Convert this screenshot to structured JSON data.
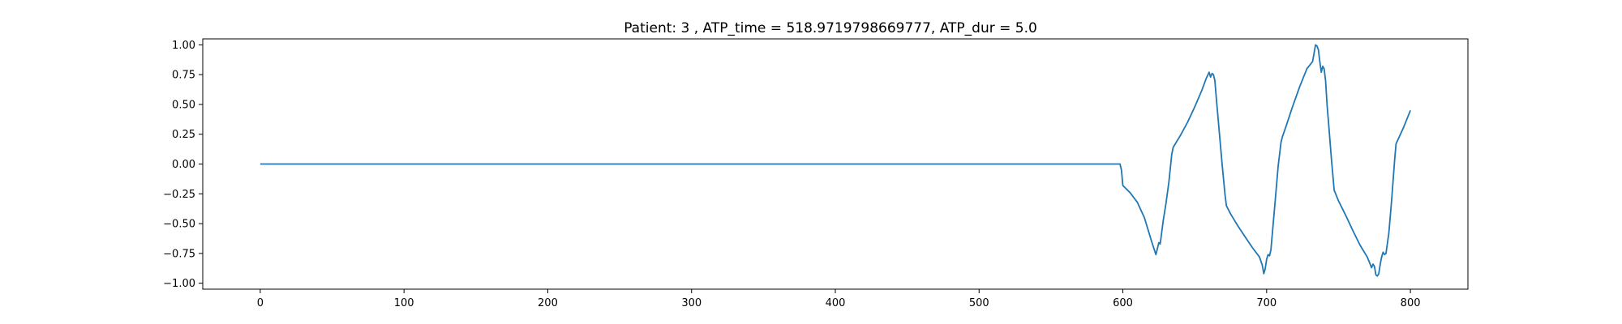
{
  "chart_data": {
    "type": "line",
    "title": "Patient: 3 , ATP_time = 518.9719798669777, ATP_dur = 5.0",
    "xlabel": "",
    "ylabel": "",
    "xlim": [
      -40,
      840
    ],
    "ylim": [
      -1.05,
      1.05
    ],
    "xticks": [
      0,
      100,
      200,
      300,
      400,
      500,
      600,
      700,
      800
    ],
    "yticks": [
      -1.0,
      -0.75,
      -0.5,
      -0.25,
      0.0,
      0.25,
      0.5,
      0.75,
      1.0
    ],
    "xtick_labels": [
      "0",
      "100",
      "200",
      "300",
      "400",
      "500",
      "600",
      "700",
      "800"
    ],
    "ytick_labels": [
      "−1.00",
      "−0.75",
      "−0.50",
      "−0.25",
      "0.00",
      "0.25",
      "0.50",
      "0.75",
      "1.00"
    ],
    "grid": false,
    "series": [
      {
        "color": "#1f77b4",
        "x": [
          0,
          100,
          200,
          300,
          400,
          500,
          598,
          599,
          600,
          605,
          610,
          615,
          620,
          623,
          625,
          626,
          628,
          630,
          632,
          634,
          635,
          640,
          645,
          650,
          655,
          658,
          660,
          661,
          662,
          663,
          664,
          665,
          667,
          669,
          671,
          672,
          675,
          680,
          685,
          690,
          695,
          697,
          698,
          699,
          700,
          701,
          702,
          703,
          704,
          706,
          708,
          710,
          711,
          713,
          718,
          723,
          728,
          732,
          733,
          734,
          735,
          736,
          737,
          738,
          739,
          740,
          741,
          742,
          743,
          745,
          747,
          749,
          750,
          755,
          760,
          765,
          770,
          772,
          773,
          774,
          775,
          776,
          777,
          778,
          779,
          780,
          781,
          782,
          783,
          785,
          787,
          789,
          790,
          795,
          800
        ],
        "y": [
          0,
          0,
          0,
          0,
          0,
          0,
          0,
          -0.05,
          -0.18,
          -0.24,
          -0.32,
          -0.45,
          -0.65,
          -0.76,
          -0.66,
          -0.67,
          -0.48,
          -0.33,
          -0.15,
          0.08,
          0.14,
          0.24,
          0.35,
          0.48,
          0.62,
          0.72,
          0.77,
          0.73,
          0.76,
          0.75,
          0.7,
          0.55,
          0.28,
          0.0,
          -0.25,
          -0.35,
          -0.42,
          -0.52,
          -0.61,
          -0.7,
          -0.78,
          -0.85,
          -0.92,
          -0.88,
          -0.8,
          -0.76,
          -0.77,
          -0.72,
          -0.58,
          -0.3,
          -0.02,
          0.18,
          0.23,
          0.3,
          0.48,
          0.65,
          0.8,
          0.86,
          0.93,
          1.0,
          0.99,
          0.96,
          0.86,
          0.77,
          0.82,
          0.8,
          0.7,
          0.5,
          0.36,
          0.05,
          -0.22,
          -0.28,
          -0.31,
          -0.43,
          -0.56,
          -0.68,
          -0.78,
          -0.84,
          -0.87,
          -0.84,
          -0.86,
          -0.93,
          -0.94,
          -0.92,
          -0.84,
          -0.78,
          -0.74,
          -0.76,
          -0.75,
          -0.58,
          -0.3,
          0.03,
          0.17,
          0.3,
          0.45
        ]
      }
    ]
  }
}
